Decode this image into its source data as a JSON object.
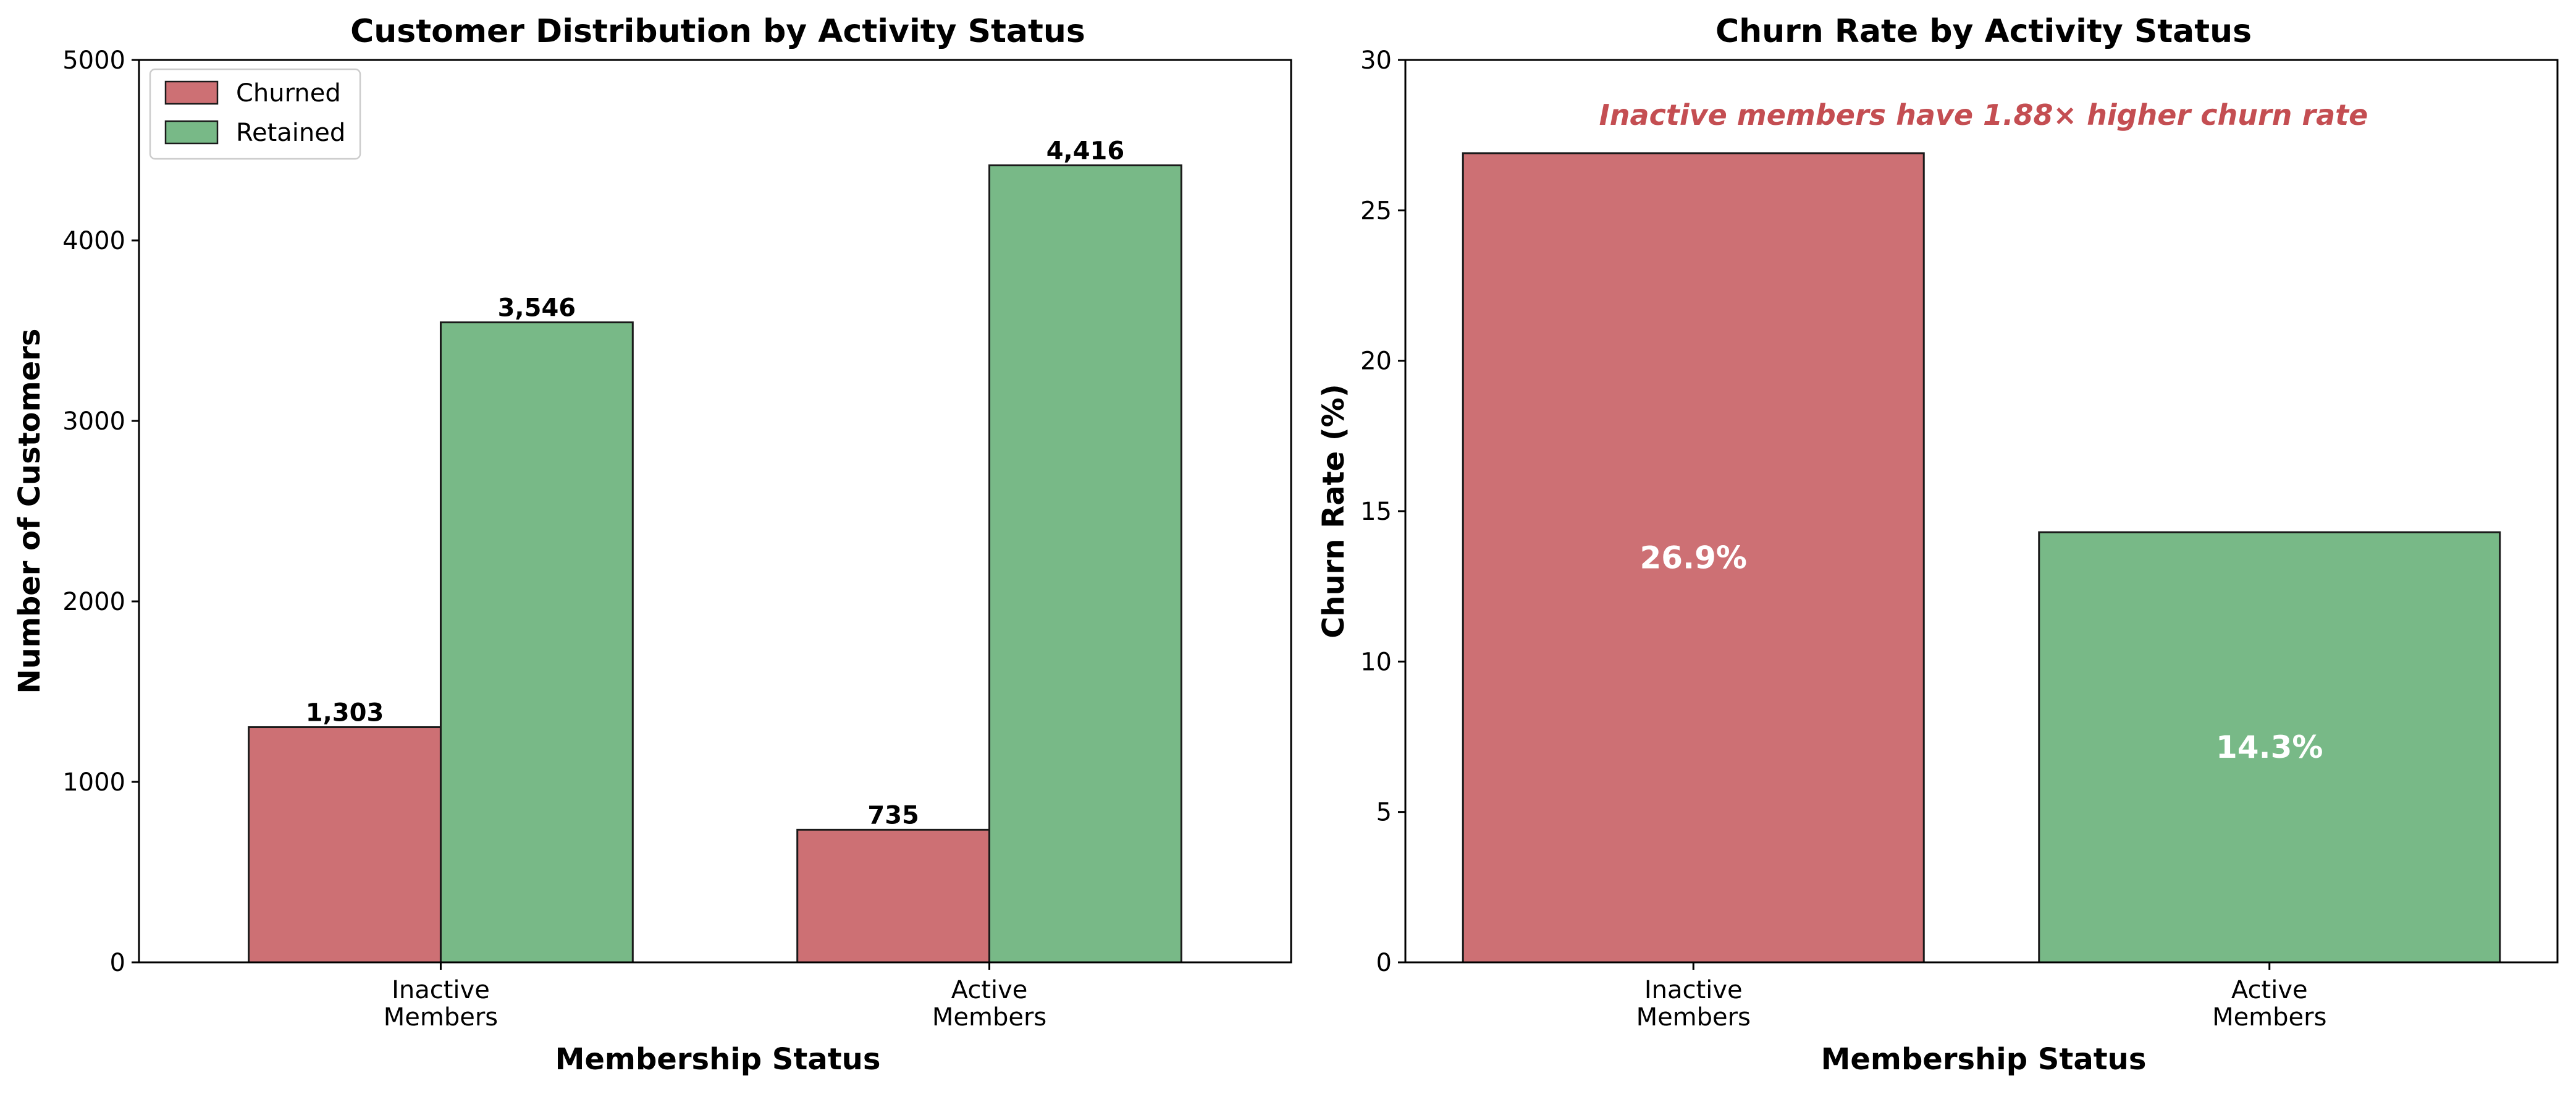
{
  "colors": {
    "churned": "#cd7074",
    "retained": "#78b987",
    "annotation": "#c44e52",
    "edge": "#1a1a1a"
  },
  "chart_data": [
    {
      "type": "bar",
      "title": "Customer Distribution by Activity Status",
      "xlabel": "Membership Status",
      "ylabel": "Number of Customers",
      "categories": [
        [
          "Inactive",
          "Members"
        ],
        [
          "Active",
          "Members"
        ]
      ],
      "series": [
        {
          "name": "Churned",
          "values": [
            1303,
            735
          ],
          "labels": [
            "1,303",
            "735"
          ],
          "color_key": "churned"
        },
        {
          "name": "Retained",
          "values": [
            3546,
            4416
          ],
          "labels": [
            "3,546",
            "4,416"
          ],
          "color_key": "retained"
        }
      ],
      "ylim": [
        0,
        5000
      ],
      "yticks": [
        0,
        1000,
        2000,
        3000,
        4000,
        5000
      ],
      "legend": {
        "placement": "top-left"
      },
      "grid": false
    },
    {
      "type": "bar",
      "title": "Churn Rate by Activity Status",
      "xlabel": "Membership Status",
      "ylabel": "Churn Rate (%)",
      "categories": [
        [
          "Inactive",
          "Members"
        ],
        [
          "Active",
          "Members"
        ]
      ],
      "values": [
        26.9,
        14.3
      ],
      "labels": [
        "26.9%",
        "14.3%"
      ],
      "bar_colors": [
        "churned",
        "retained"
      ],
      "ylim": [
        0,
        30
      ],
      "yticks": [
        0,
        5,
        10,
        15,
        20,
        25,
        30
      ],
      "annotation": "Inactive members have 1.88× higher churn rate",
      "grid": false
    }
  ]
}
